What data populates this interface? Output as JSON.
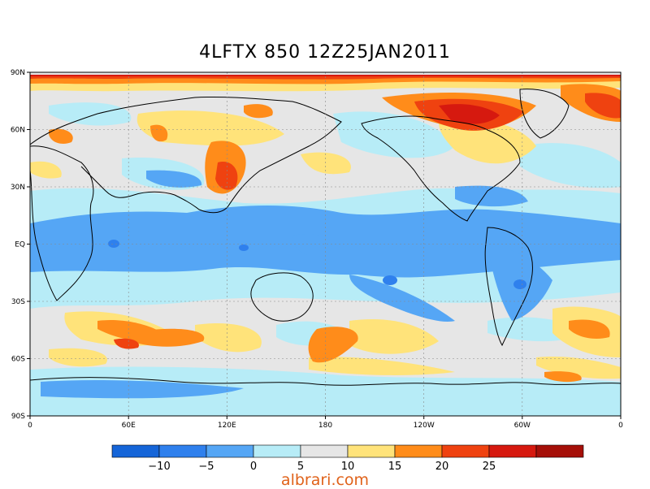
{
  "title": "4LFTX 850 12Z25JAN2011",
  "watermark": "albrari.com",
  "map": {
    "projection": "cylindrical equidistant",
    "lon_range": [
      0,
      360
    ],
    "lat_range": [
      -90,
      90
    ],
    "grid": "dashed",
    "lat_ticks": [
      "90N",
      "60N",
      "30N",
      "EQ",
      "30S",
      "60S",
      "90S"
    ],
    "lon_ticks": [
      "0",
      "60E",
      "120E",
      "180",
      "120W",
      "60W",
      "0"
    ],
    "field": "4-layer lifted index at 850 hPa",
    "colors": {
      "ocean_background": "#e6e6e6",
      "continent_outline": "#000000"
    }
  },
  "colorbar": {
    "tick_labels": [
      "-10",
      "-5",
      "0",
      "5",
      "10",
      "15",
      "20",
      "25"
    ],
    "bins": [
      {
        "range": "< -10",
        "color": "#1565d8"
      },
      {
        "range": "-10 to -5",
        "color": "#2f80ed"
      },
      {
        "range": "-5 to 0",
        "color": "#55a6f5"
      },
      {
        "range": "0 to 5",
        "color": "#b7ecf7"
      },
      {
        "range": "5 to 10",
        "color": "#e6e6e6"
      },
      {
        "range": "10 to 15",
        "color": "#ffe37a"
      },
      {
        "range": "15 to 20",
        "color": "#ff8c1a"
      },
      {
        "range": "20 to 25",
        "color": "#ef4210"
      },
      {
        "range": "25 to 30",
        "color": "#d6190f"
      },
      {
        "range": "> 30",
        "color": "#a50f08"
      }
    ]
  }
}
